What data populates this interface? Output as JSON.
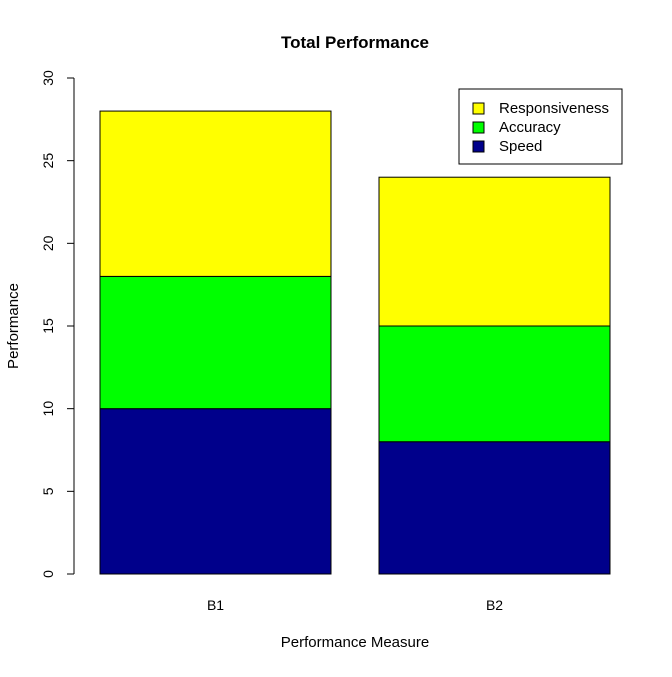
{
  "chart_data": {
    "type": "bar",
    "stacked": true,
    "title": "Total Performance",
    "xlabel": "Performance Measure",
    "ylabel": "Performance",
    "categories": [
      "B1",
      "B2"
    ],
    "series": [
      {
        "name": "Speed",
        "values": [
          10,
          8
        ],
        "color": "#00008B"
      },
      {
        "name": "Accuracy",
        "values": [
          8,
          7
        ],
        "color": "#00FF00"
      },
      {
        "name": "Responsiveness",
        "values": [
          10,
          9
        ],
        "color": "#FFFF00"
      }
    ],
    "ylim": [
      0,
      30
    ],
    "yticks": [
      "0",
      "5",
      "10",
      "15",
      "20",
      "25",
      "30"
    ],
    "legend_order": [
      "Responsiveness",
      "Accuracy",
      "Speed"
    ],
    "legend_position": "top-right",
    "grid": false
  }
}
